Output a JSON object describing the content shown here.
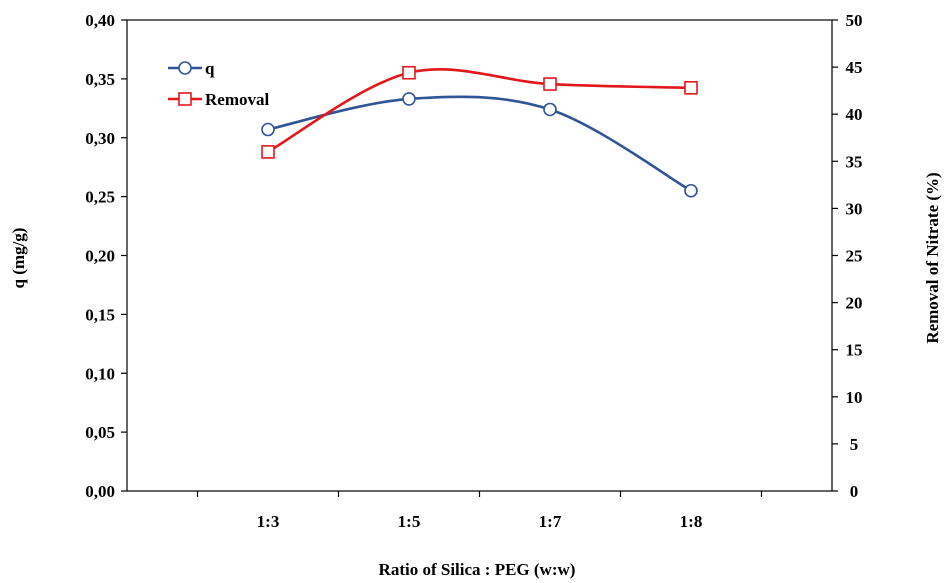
{
  "chart_data": {
    "type": "line",
    "categories": [
      "1:3",
      "1:5",
      "1:7",
      "1:8"
    ],
    "xlabel": "Ratio of  Silica : PEG  (w:w)",
    "ylabel": "q (mg/g)",
    "y2label": "Removal of Nitrate (%)",
    "ylim": [
      0,
      0.4
    ],
    "y2lim": [
      0,
      50
    ],
    "yticks": [
      "0,00",
      "0,05",
      "0,10",
      "0,15",
      "0,20",
      "0,25",
      "0,30",
      "0,35",
      "0,40"
    ],
    "y2ticks": [
      "0",
      "5",
      "10",
      "15",
      "20",
      "25",
      "30",
      "35",
      "40",
      "45",
      "50"
    ],
    "legend_position": "top-left",
    "grid": false,
    "series": [
      {
        "name": "q",
        "axis": "left",
        "marker": "circle",
        "color": "#2F5597",
        "values": [
          0.307,
          0.333,
          0.324,
          0.255
        ]
      },
      {
        "name": "Removal",
        "axis": "right",
        "marker": "square",
        "color": "#E4171B",
        "values": [
          36.0,
          44.4,
          43.2,
          42.8
        ]
      }
    ]
  }
}
